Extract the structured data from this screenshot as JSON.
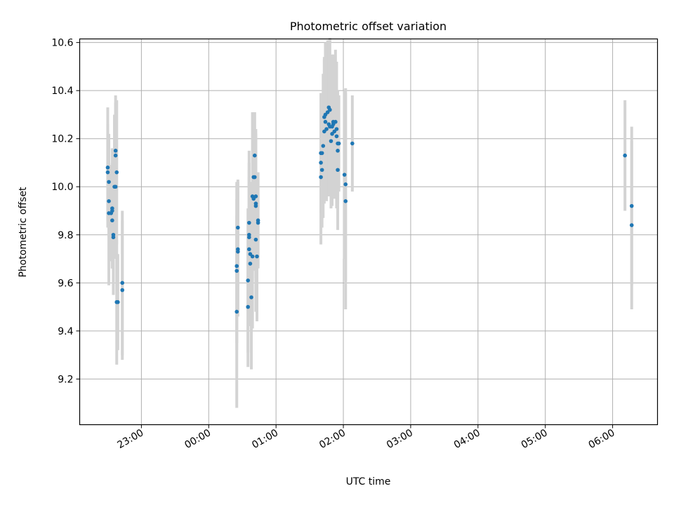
{
  "chart_data": {
    "type": "scatter",
    "title": "Photometric offset variation",
    "xlabel": "UTC time",
    "ylabel": "Photometric offset",
    "x_unit": "UTC time of day (hh:mm)",
    "xlim": [
      "22:05",
      "06:40"
    ],
    "ylim": [
      9.01,
      10.615
    ],
    "grid": true,
    "x_ticks": [
      "23:00",
      "00:00",
      "01:00",
      "02:00",
      "03:00",
      "04:00",
      "05:00",
      "06:00"
    ],
    "y_ticks": [
      "9.2",
      "9.4",
      "9.6",
      "9.8",
      "10.0",
      "10.2",
      "10.4",
      "10.6"
    ],
    "colors": {
      "points": "#1f77b4",
      "errorbars": "#d3d3d3",
      "grid": "#b0b0b0"
    },
    "series": [
      {
        "points": [
          {
            "t": "22:30",
            "y": 10.08,
            "err": 0.25
          },
          {
            "t": "22:30",
            "y": 10.06,
            "err": 0.2
          },
          {
            "t": "22:31",
            "y": 10.02,
            "err": 0.2
          },
          {
            "t": "22:31",
            "y": 9.94,
            "err": 0.15
          },
          {
            "t": "22:31",
            "y": 9.89,
            "err": 0.3
          },
          {
            "t": "22:33",
            "y": 9.89,
            "err": 0.2
          },
          {
            "t": "22:34",
            "y": 9.91,
            "err": 0.25
          },
          {
            "t": "22:34",
            "y": 9.9,
            "err": 0.2
          },
          {
            "t": "22:34",
            "y": 9.86,
            "err": 0.2
          },
          {
            "t": "22:35",
            "y": 9.8,
            "err": 0.25
          },
          {
            "t": "22:35",
            "y": 9.79,
            "err": 0.2
          },
          {
            "t": "22:36",
            "y": 10.0,
            "err": 0.3
          },
          {
            "t": "22:37",
            "y": 10.15,
            "err": 0.2
          },
          {
            "t": "22:37",
            "y": 10.13,
            "err": 0.25
          },
          {
            "t": "22:38",
            "y": 10.06,
            "err": 0.3
          },
          {
            "t": "22:37",
            "y": 10.0,
            "err": 0.2
          },
          {
            "t": "22:38",
            "y": 9.52,
            "err": 0.26
          },
          {
            "t": "22:39",
            "y": 9.52,
            "err": 0.2
          },
          {
            "t": "22:43",
            "y": 9.6,
            "err": 0.3
          },
          {
            "t": "22:43",
            "y": 9.57,
            "err": 0.29
          },
          {
            "t": "00:25",
            "y": 9.48,
            "err": 0.4
          },
          {
            "t": "00:25",
            "y": 9.67,
            "err": 0.35
          },
          {
            "t": "00:25",
            "y": 9.65,
            "err": 0.3
          },
          {
            "t": "00:26",
            "y": 9.83,
            "err": 0.2
          },
          {
            "t": "00:26",
            "y": 9.74,
            "err": 0.28
          },
          {
            "t": "00:26",
            "y": 9.73,
            "err": 0.25
          },
          {
            "t": "00:35",
            "y": 9.61,
            "err": 0.3
          },
          {
            "t": "00:35",
            "y": 9.5,
            "err": 0.25
          },
          {
            "t": "00:36",
            "y": 9.85,
            "err": 0.3
          },
          {
            "t": "00:36",
            "y": 9.8,
            "err": 0.3
          },
          {
            "t": "00:36",
            "y": 9.79,
            "err": 0.28
          },
          {
            "t": "00:36",
            "y": 9.74,
            "err": 0.3
          },
          {
            "t": "00:37",
            "y": 9.72,
            "err": 0.3
          },
          {
            "t": "00:37",
            "y": 9.68,
            "err": 0.26
          },
          {
            "t": "00:38",
            "y": 9.54,
            "err": 0.3
          },
          {
            "t": "00:39",
            "y": 9.96,
            "err": 0.35
          },
          {
            "t": "00:39",
            "y": 9.71,
            "err": 0.3
          },
          {
            "t": "00:40",
            "y": 10.04,
            "err": 0.25
          },
          {
            "t": "00:40",
            "y": 9.95,
            "err": 0.3
          },
          {
            "t": "00:41",
            "y": 10.13,
            "err": 0.18
          },
          {
            "t": "00:41",
            "y": 10.04,
            "err": 0.2
          },
          {
            "t": "00:42",
            "y": 9.96,
            "err": 0.28
          },
          {
            "t": "00:42",
            "y": 9.93,
            "err": 0.28
          },
          {
            "t": "00:42",
            "y": 9.92,
            "err": 0.3
          },
          {
            "t": "00:42",
            "y": 9.78,
            "err": 0.3
          },
          {
            "t": "00:43",
            "y": 9.71,
            "err": 0.27
          },
          {
            "t": "00:44",
            "y": 9.85,
            "err": 0.18
          },
          {
            "t": "00:44",
            "y": 9.86,
            "err": 0.2
          },
          {
            "t": "01:40",
            "y": 10.14,
            "err": 0.25
          },
          {
            "t": "01:40",
            "y": 10.1,
            "err": 0.2
          },
          {
            "t": "01:40",
            "y": 10.04,
            "err": 0.28
          },
          {
            "t": "01:41",
            "y": 10.14,
            "err": 0.22
          },
          {
            "t": "01:41",
            "y": 10.07,
            "err": 0.24
          },
          {
            "t": "01:42",
            "y": 10.17,
            "err": 0.3
          },
          {
            "t": "01:43",
            "y": 10.23,
            "err": 0.3
          },
          {
            "t": "01:43",
            "y": 10.29,
            "err": 0.25
          },
          {
            "t": "01:44",
            "y": 10.3,
            "err": 0.3
          },
          {
            "t": "01:44",
            "y": 10.27,
            "err": 0.26
          },
          {
            "t": "01:45",
            "y": 10.24,
            "err": 0.3
          },
          {
            "t": "01:46",
            "y": 10.31,
            "err": 0.3
          },
          {
            "t": "01:47",
            "y": 10.33,
            "err": 0.28
          },
          {
            "t": "01:47",
            "y": 10.26,
            "err": 0.3
          },
          {
            "t": "01:48",
            "y": 10.32,
            "err": 0.3
          },
          {
            "t": "01:48",
            "y": 10.25,
            "err": 0.26
          },
          {
            "t": "01:49",
            "y": 10.19,
            "err": 0.28
          },
          {
            "t": "01:50",
            "y": 10.25,
            "err": 0.3
          },
          {
            "t": "01:50",
            "y": 10.22,
            "err": 0.3
          },
          {
            "t": "01:51",
            "y": 10.27,
            "err": 0.28
          },
          {
            "t": "01:51",
            "y": 10.26,
            "err": 0.24
          },
          {
            "t": "01:52",
            "y": 10.23,
            "err": 0.28
          },
          {
            "t": "01:53",
            "y": 10.27,
            "err": 0.3
          },
          {
            "t": "01:54",
            "y": 10.24,
            "err": 0.28
          },
          {
            "t": "01:54",
            "y": 10.21,
            "err": 0.3
          },
          {
            "t": "01:55",
            "y": 10.18,
            "err": 0.22
          },
          {
            "t": "01:55",
            "y": 10.15,
            "err": 0.22
          },
          {
            "t": "01:55",
            "y": 10.07,
            "err": 0.25
          },
          {
            "t": "01:56",
            "y": 10.18,
            "err": 0.2
          },
          {
            "t": "02:01",
            "y": 10.05,
            "err": 0.35
          },
          {
            "t": "02:02",
            "y": 10.01,
            "err": 0.4
          },
          {
            "t": "02:02",
            "y": 9.94,
            "err": 0.45
          },
          {
            "t": "02:08",
            "y": 10.18,
            "err": 0.2
          },
          {
            "t": "06:11",
            "y": 10.13,
            "err": 0.23
          },
          {
            "t": "06:17",
            "y": 9.92,
            "err": 0.33
          },
          {
            "t": "06:17",
            "y": 9.84,
            "err": 0.35
          }
        ]
      }
    ]
  }
}
